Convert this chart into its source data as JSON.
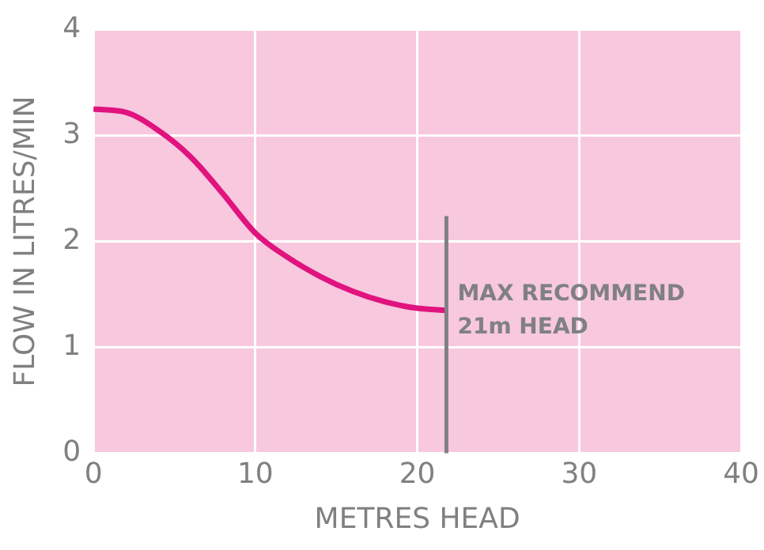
{
  "chart_data": {
    "type": "line",
    "xlabel": "METRES HEAD",
    "ylabel": "FLOW IN LITRES/MIN",
    "x": [
      0,
      2,
      4,
      6,
      8,
      10,
      12,
      14,
      16,
      18,
      20,
      21.8
    ],
    "series": [
      {
        "color": "#e0137f",
        "values": [
          3.25,
          3.22,
          3.05,
          2.8,
          2.45,
          2.08,
          1.85,
          1.67,
          1.53,
          1.43,
          1.37,
          1.35
        ]
      }
    ],
    "xlim": [
      0,
      40
    ],
    "xticks": [
      0,
      10,
      20,
      30,
      40
    ],
    "ylim": [
      0,
      4
    ],
    "yticks": [
      0,
      1,
      2,
      3,
      4
    ],
    "grid": true,
    "marker": "none",
    "line_style": "solid",
    "ref_lines": [
      {
        "axis": "x",
        "value": 21.8,
        "label": "MAX RECOMMEND 21m HEAD",
        "color": "#808083"
      }
    ]
  }
}
